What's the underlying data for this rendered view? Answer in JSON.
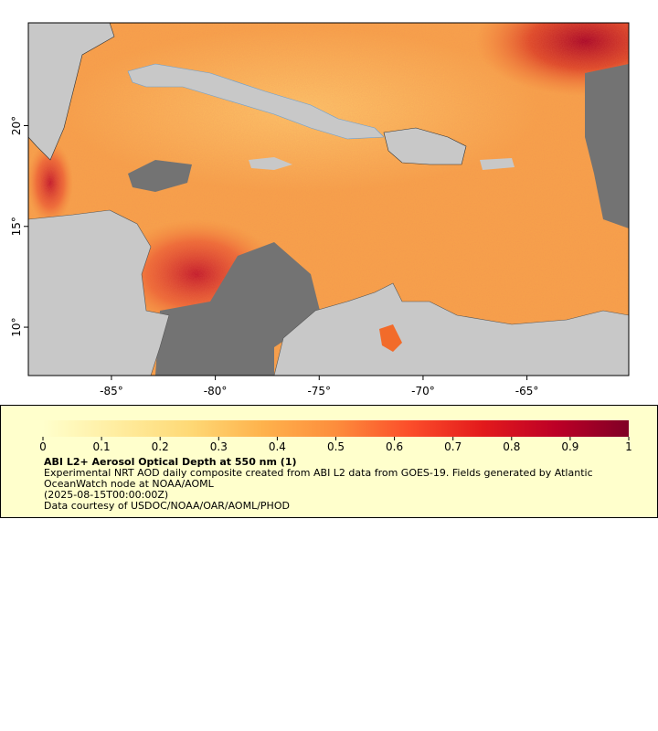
{
  "map": {
    "xlim": [
      -89,
      -60.1
    ],
    "ylim": [
      7.6,
      25.1
    ],
    "lon_ticks": [
      {
        "value": -85,
        "label": "-85°"
      },
      {
        "value": -80,
        "label": "-80°"
      },
      {
        "value": -75,
        "label": "-75°"
      },
      {
        "value": -70,
        "label": "-70°"
      },
      {
        "value": -65,
        "label": "-65°"
      }
    ],
    "lat_ticks": [
      {
        "value": 10,
        "label": "10°"
      },
      {
        "value": 15,
        "label": "15°"
      },
      {
        "value": 20,
        "label": "20°"
      }
    ]
  },
  "colorbar": {
    "range": [
      0,
      1
    ],
    "ticks": [
      0,
      0.1,
      0.2,
      0.3,
      0.4,
      0.5,
      0.6,
      0.7,
      0.8,
      0.9,
      1
    ],
    "colors": [
      "#ffffcc",
      "#ffeda0",
      "#fed976",
      "#feb24c",
      "#fd8d3c",
      "#fc4e2a",
      "#e31a1c",
      "#bd0026",
      "#800026"
    ]
  },
  "legend": {
    "title": "ABI L2+ Aerosol Optical Depth at 550 nm (1)",
    "description": "Experimental NRT AOD daily composite created from ABI L2 data from GOES-19. Fields generated by Atlantic OceanWatch node at NOAA/AOML",
    "time": "(2025-08-15T00:00:00Z)",
    "credit": "Data courtesy of USDOC/NOAA/OAR/AOML/PHOD"
  }
}
